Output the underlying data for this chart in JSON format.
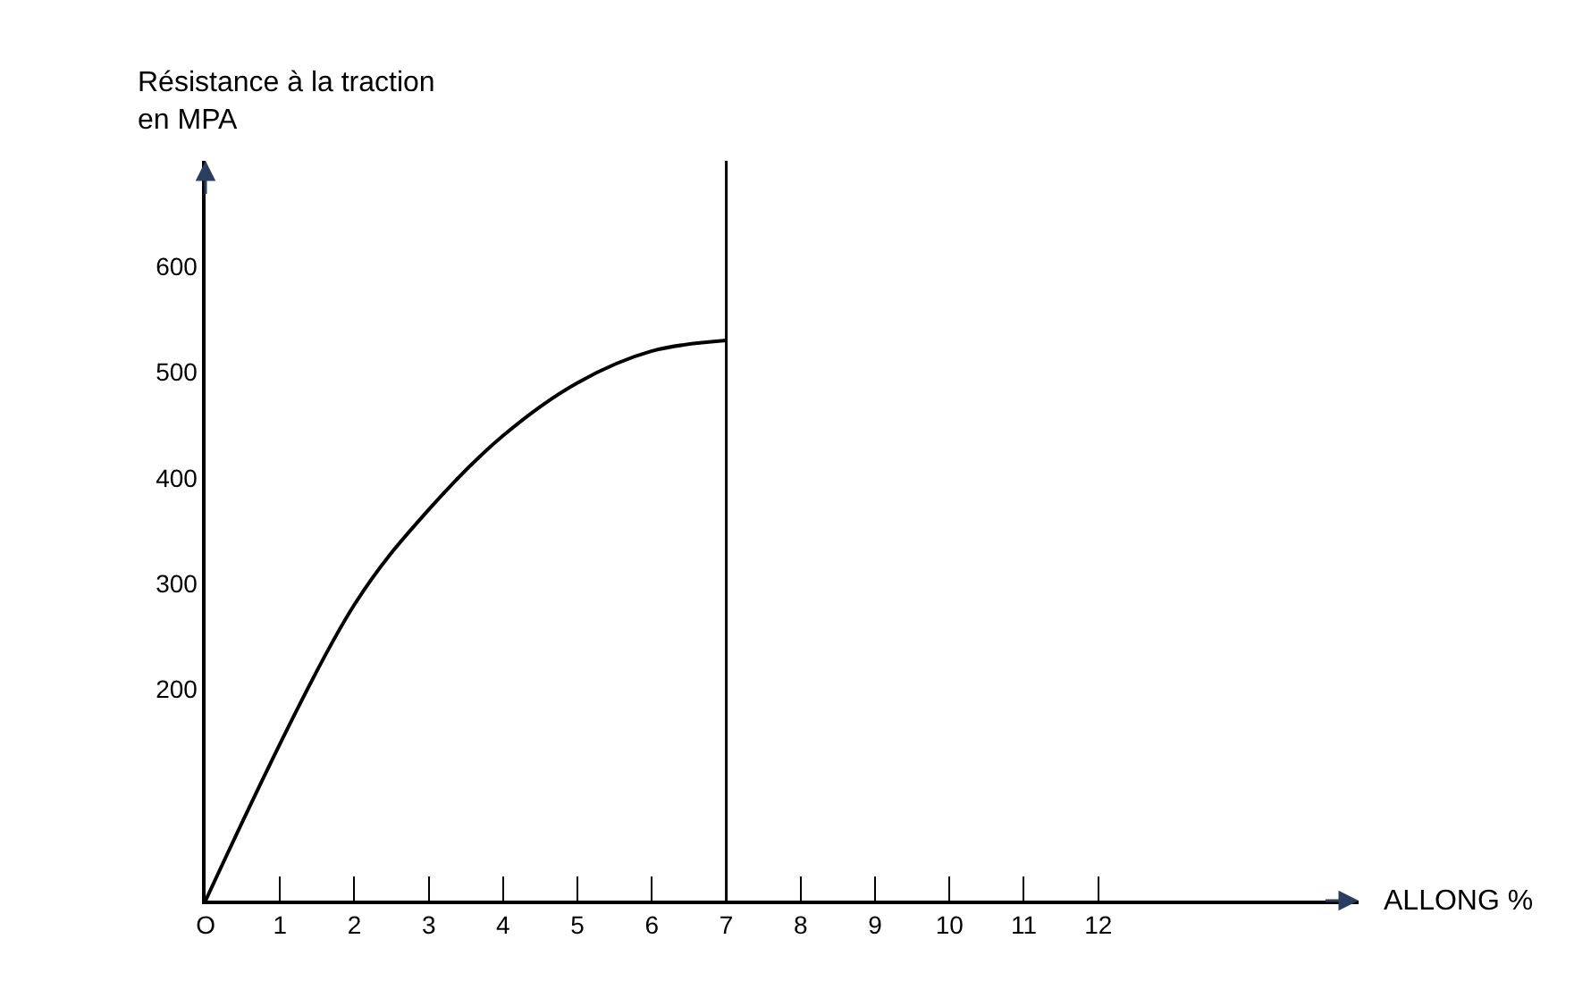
{
  "chart_data": {
    "type": "line",
    "ylabel": "Résistance à la traction en MPA",
    "xlabel": "ALLONG %",
    "x": [
      0,
      2,
      3,
      4,
      5,
      6,
      7
    ],
    "series": [
      {
        "color": "#000000",
        "values": [
          0,
          280,
          370,
          440,
          490,
          520,
          530
        ]
      }
    ],
    "xlim": [
      0,
      15.5
    ],
    "ylim": [
      0,
      700
    ],
    "xticks": [
      {
        "value": 0,
        "label": "O"
      },
      1,
      2,
      3,
      4,
      5,
      6,
      7,
      8,
      9,
      10,
      11,
      12
    ],
    "yticks": [
      200,
      300,
      400,
      500,
      600
    ],
    "ref_lines": [
      {
        "axis": "x",
        "value": 7,
        "color": "#000000"
      }
    ],
    "marker": "none",
    "line_style": "solid"
  }
}
